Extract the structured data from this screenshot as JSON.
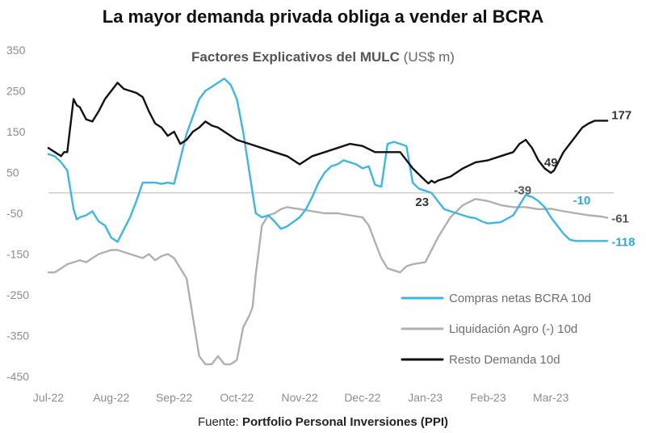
{
  "header": {
    "title": "La mayor demanda privada obliga a vender al BCRA"
  },
  "source": {
    "prefix": "Fuente: ",
    "name": "Portfolio Personal Inversiones (PPI)"
  },
  "chart_data": {
    "type": "line",
    "title": "Factores Explicativos del MULC",
    "title_unit": "(US$ m)",
    "xlabel": "",
    "ylabel": "",
    "ylim": [
      -450,
      350
    ],
    "yticks": [
      350,
      250,
      150,
      50,
      -50,
      -150,
      -250,
      -350,
      -450
    ],
    "xlim": [
      0,
      9
    ],
    "xticks": [
      {
        "x": 0,
        "label": "Jul-22"
      },
      {
        "x": 1,
        "label": "Aug-22"
      },
      {
        "x": 2,
        "label": "Sep-22"
      },
      {
        "x": 3,
        "label": "Oct-22"
      },
      {
        "x": 4,
        "label": "Nov-22"
      },
      {
        "x": 5,
        "label": "Dec-22"
      },
      {
        "x": 6,
        "label": "Jan-23"
      },
      {
        "x": 7,
        "label": "Feb-23"
      },
      {
        "x": 8,
        "label": "Mar-23"
      }
    ],
    "legend_position": "bottom-right",
    "series": [
      {
        "name": "Compras netas BCRA 10d",
        "color": "#3cb6e3",
        "end_label": "-118",
        "x": [
          0,
          0.1,
          0.2,
          0.3,
          0.4,
          0.45,
          0.5,
          0.6,
          0.7,
          0.8,
          0.9,
          1.0,
          1.1,
          1.2,
          1.3,
          1.4,
          1.5,
          1.6,
          1.7,
          1.8,
          1.9,
          2.0,
          2.2,
          2.4,
          2.5,
          2.6,
          2.7,
          2.8,
          2.9,
          3.0,
          3.1,
          3.2,
          3.3,
          3.4,
          3.5,
          3.6,
          3.7,
          3.8,
          4.0,
          4.1,
          4.2,
          4.3,
          4.4,
          4.5,
          4.6,
          4.7,
          4.8,
          4.9,
          5.0,
          5.1,
          5.2,
          5.3,
          5.4,
          5.5,
          5.6,
          5.7,
          5.8,
          5.9,
          6.0,
          6.1,
          6.2,
          6.25,
          6.3,
          6.4,
          6.5,
          6.6,
          6.7,
          6.8,
          6.9,
          7.0,
          7.2,
          7.4,
          7.5,
          7.6,
          7.7,
          7.8,
          7.9,
          8.0,
          8.1,
          8.2,
          8.3,
          8.4,
          8.5,
          8.6,
          8.7,
          8.8,
          8.9
        ],
        "y": [
          95,
          90,
          75,
          55,
          -40,
          -65,
          -60,
          -55,
          -45,
          -70,
          -80,
          -110,
          -120,
          -90,
          -60,
          -20,
          25,
          25,
          25,
          22,
          25,
          22,
          145,
          230,
          250,
          260,
          270,
          280,
          265,
          230,
          150,
          50,
          -50,
          -60,
          -55,
          -70,
          -88,
          -82,
          -60,
          -40,
          -10,
          25,
          50,
          65,
          70,
          80,
          75,
          70,
          60,
          65,
          20,
          15,
          120,
          125,
          120,
          115,
          25,
          10,
          5,
          0,
          -20,
          -30,
          -40,
          -45,
          -50,
          -55,
          -60,
          -62,
          -70,
          -75,
          -72,
          -55,
          -30,
          -5,
          -10,
          -20,
          -35,
          -60,
          -80,
          -100,
          -115,
          -118,
          -118,
          -118,
          -118,
          -118,
          -118
        ],
        "annotations": [
          {
            "x": 8.25,
            "y": -10,
            "text": "-10"
          }
        ]
      },
      {
        "name": "Liquidación Agro (-) 10d",
        "color": "#b0b0b0",
        "end_label": "-61",
        "x": [
          0,
          0.1,
          0.2,
          0.3,
          0.4,
          0.5,
          0.6,
          0.7,
          0.8,
          0.9,
          1.0,
          1.1,
          1.2,
          1.3,
          1.4,
          1.5,
          1.6,
          1.7,
          1.8,
          1.9,
          2.0,
          2.2,
          2.4,
          2.5,
          2.6,
          2.7,
          2.8,
          2.9,
          3.0,
          3.1,
          3.2,
          3.25,
          3.3,
          3.4,
          3.5,
          3.6,
          3.7,
          3.8,
          4.0,
          4.2,
          4.4,
          4.6,
          4.8,
          5.0,
          5.1,
          5.2,
          5.3,
          5.4,
          5.5,
          5.6,
          5.7,
          5.8,
          6.0,
          6.2,
          6.4,
          6.6,
          6.8,
          7.0,
          7.2,
          7.4,
          7.6,
          7.8,
          8.0,
          8.2,
          8.4,
          8.6,
          8.8,
          8.9
        ],
        "y": [
          -195,
          -195,
          -185,
          -175,
          -170,
          -165,
          -170,
          -160,
          -150,
          -145,
          -140,
          -140,
          -145,
          -150,
          -155,
          -160,
          -150,
          -165,
          -155,
          -150,
          -160,
          -210,
          -400,
          -420,
          -420,
          -400,
          -420,
          -420,
          -410,
          -330,
          -300,
          -280,
          -200,
          -80,
          -55,
          -50,
          -40,
          -35,
          -40,
          -45,
          -50,
          -50,
          -55,
          -60,
          -80,
          -120,
          -160,
          -185,
          -190,
          -195,
          -180,
          -175,
          -170,
          -110,
          -60,
          -30,
          -15,
          -20,
          -30,
          -35,
          -35,
          -40,
          -39,
          -45,
          -50,
          -55,
          -58,
          -61
        ],
        "annotations": [
          {
            "x": 7.55,
            "y": -39,
            "text": "-39"
          }
        ]
      },
      {
        "name": "Resto Demanda 10d",
        "color": "#111111",
        "end_label": "177",
        "x": [
          0,
          0.1,
          0.2,
          0.25,
          0.3,
          0.4,
          0.45,
          0.5,
          0.6,
          0.7,
          0.8,
          0.9,
          1.0,
          1.1,
          1.2,
          1.3,
          1.4,
          1.5,
          1.6,
          1.7,
          1.8,
          1.9,
          2.0,
          2.1,
          2.2,
          2.3,
          2.4,
          2.5,
          2.6,
          2.7,
          2.8,
          2.9,
          3.0,
          3.2,
          3.4,
          3.6,
          3.8,
          4.0,
          4.2,
          4.4,
          4.6,
          4.8,
          5.0,
          5.2,
          5.4,
          5.6,
          5.8,
          6.0,
          6.05,
          6.1,
          6.15,
          6.2,
          6.3,
          6.4,
          6.6,
          6.8,
          7.0,
          7.2,
          7.4,
          7.5,
          7.6,
          7.7,
          7.8,
          7.9,
          8.0,
          8.05,
          8.1,
          8.2,
          8.3,
          8.4,
          8.5,
          8.6,
          8.7,
          8.8,
          8.9
        ],
        "y": [
          110,
          100,
          90,
          100,
          100,
          230,
          215,
          210,
          180,
          175,
          200,
          230,
          250,
          270,
          255,
          250,
          245,
          235,
          200,
          170,
          160,
          140,
          150,
          120,
          130,
          150,
          160,
          175,
          165,
          160,
          150,
          140,
          130,
          120,
          110,
          100,
          90,
          70,
          90,
          100,
          110,
          120,
          115,
          100,
          100,
          100,
          60,
          30,
          23,
          30,
          25,
          30,
          35,
          40,
          60,
          75,
          80,
          90,
          100,
          120,
          130,
          110,
          80,
          60,
          49,
          55,
          70,
          100,
          120,
          140,
          160,
          170,
          177,
          177,
          177
        ],
        "annotations": [
          {
            "x": 5.95,
            "y": 23,
            "text": "23"
          },
          {
            "x": 8.0,
            "y": 49,
            "text": "49"
          }
        ]
      }
    ]
  }
}
